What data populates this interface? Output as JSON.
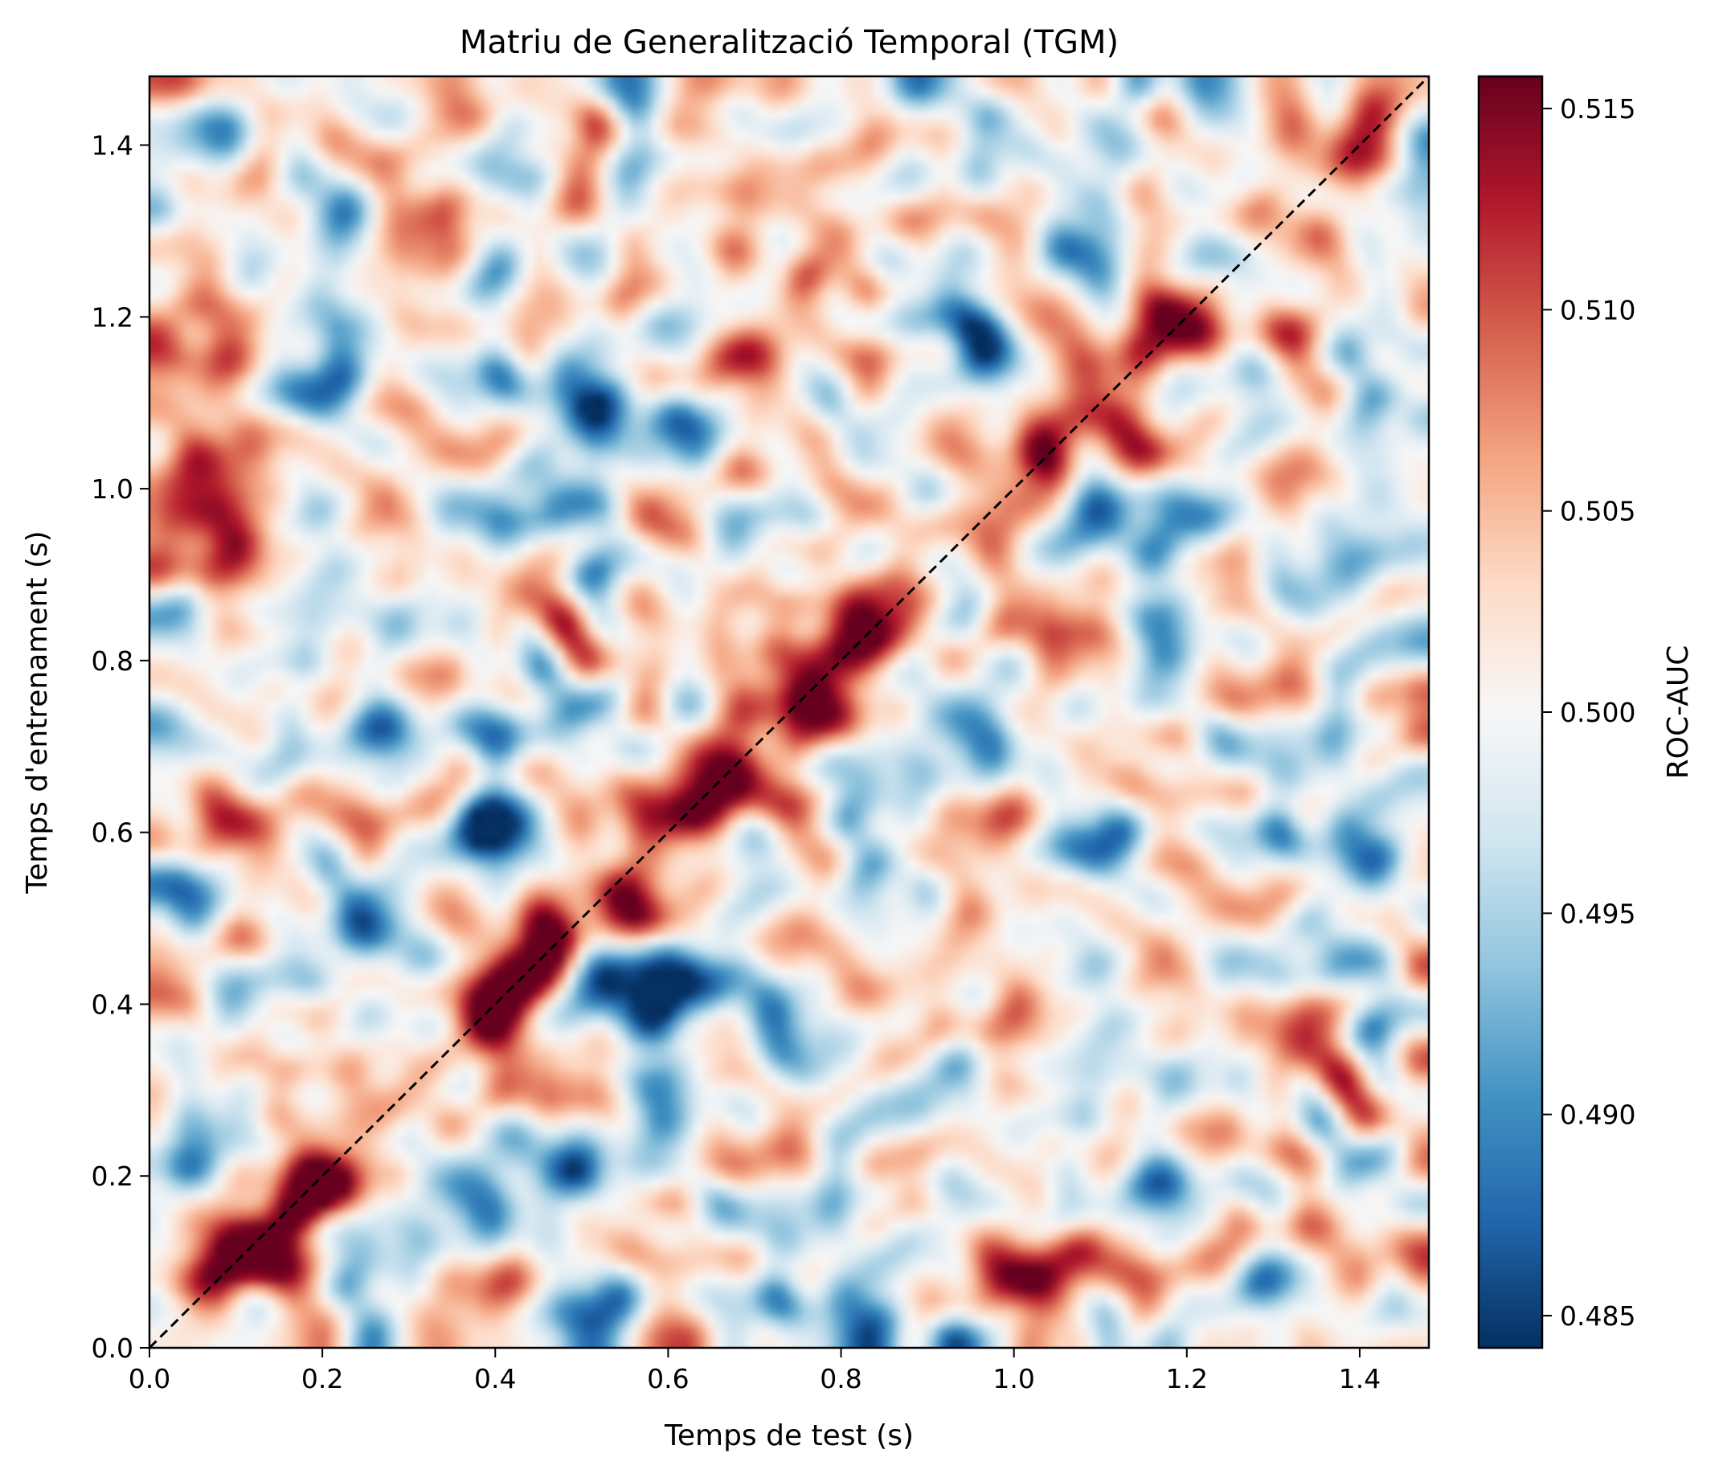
{
  "chart_data": {
    "type": "heatmap",
    "title": "Matriu de Generalització Temporal (TGM)",
    "xlabel": "Temps de test (s)",
    "ylabel": "Temps d'entrenament (s)",
    "colorbar_label": "ROC-AUC",
    "colormap": "RdBu_r",
    "xlim": [
      0.0,
      1.48
    ],
    "ylim": [
      0.0,
      1.48
    ],
    "x_ticks": [
      0.0,
      0.2,
      0.4,
      0.6,
      0.8,
      1.0,
      1.2,
      1.4
    ],
    "y_ticks": [
      0.0,
      0.2,
      0.4,
      0.6,
      0.8,
      1.0,
      1.2,
      1.4
    ],
    "x_tick_labels": [
      "0.0",
      "0.2",
      "0.4",
      "0.6",
      "0.8",
      "1.0",
      "1.2",
      "1.4"
    ],
    "y_tick_labels": [
      "0.0",
      "0.2",
      "0.4",
      "0.6",
      "0.8",
      "1.0",
      "1.2",
      "1.4"
    ],
    "vmin": 0.4842,
    "vmax": 0.5158,
    "colorbar_ticks": [
      0.485,
      0.49,
      0.495,
      0.5,
      0.505,
      0.51,
      0.515
    ],
    "colorbar_tick_labels": [
      "0.485",
      "0.490",
      "0.495",
      "0.500",
      "0.505",
      "0.510",
      "0.515"
    ],
    "diagonal_line": {
      "style": "dashed",
      "color": "#000000",
      "from": [
        0.0,
        0.0
      ],
      "to": [
        1.48,
        1.48
      ]
    },
    "grid": false,
    "features": {
      "diagonal_peaks": [
        {
          "t": 0.14,
          "value": 0.516
        },
        {
          "t": 0.42,
          "value": 0.516
        },
        {
          "t": 0.63,
          "value": 0.512
        },
        {
          "t": 0.82,
          "value": 0.514
        },
        {
          "t": 1.1,
          "value": 0.51
        }
      ],
      "blobs": [
        {
          "x": 0.06,
          "y": 0.96,
          "value": 0.511
        },
        {
          "x": 0.24,
          "y": 0.48,
          "value": 0.488
        },
        {
          "x": 0.48,
          "y": 0.22,
          "value": 0.486
        },
        {
          "x": 0.4,
          "y": 0.6,
          "value": 0.489
        },
        {
          "x": 0.42,
          "y": 0.72,
          "value": 0.49
        },
        {
          "x": 0.58,
          "y": 0.42,
          "value": 0.489
        },
        {
          "x": 0.72,
          "y": 0.4,
          "value": 0.49
        },
        {
          "x": 0.08,
          "y": 0.25,
          "value": 0.489
        },
        {
          "x": 0.53,
          "y": 1.06,
          "value": 0.492
        },
        {
          "x": 1.4,
          "y": 0.95,
          "value": 0.489
        },
        {
          "x": 1.4,
          "y": 1.42,
          "value": 0.509
        },
        {
          "x": 1.32,
          "y": 0.4,
          "value": 0.508
        },
        {
          "x": 1.05,
          "y": 0.1,
          "value": 0.509
        },
        {
          "x": 0.78,
          "y": 1.28,
          "value": 0.508
        },
        {
          "x": 0.1,
          "y": 1.03,
          "value": 0.508
        }
      ]
    }
  }
}
